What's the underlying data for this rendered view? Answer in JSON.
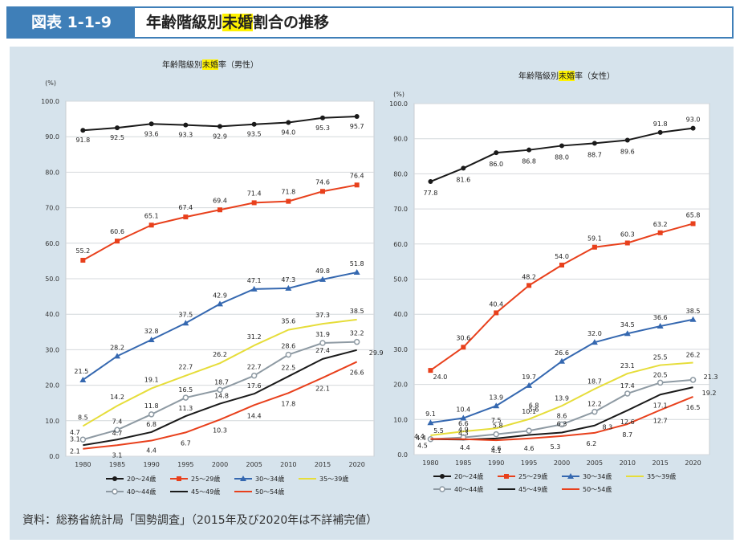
{
  "header": {
    "figure_number": "図表 1-1-9",
    "title_before": "年齢階級別",
    "title_highlight": "未婚",
    "title_after": "割合の推移"
  },
  "source_note": "資料：総務省統計局「国勢調査」（2015年及び2020年は不詳補完値）",
  "colors": {
    "header_accent": "#3f7fb8",
    "panel_bg": "#d6e3ec",
    "highlight": "#fff200"
  },
  "chart_data": [
    {
      "type": "line",
      "title_before": "年齢階級別",
      "title_highlight": "未婚",
      "title_after": "率（男性）",
      "ylabel": "(%)",
      "xlabel": "",
      "ylim": [
        0,
        100
      ],
      "yticks": [
        "0.0",
        "10.0",
        "20.0",
        "30.0",
        "40.0",
        "50.0",
        "60.0",
        "70.0",
        "80.0",
        "90.0",
        "100.0"
      ],
      "categories": [
        "1980",
        "1985",
        "1990",
        "1995",
        "2000",
        "2005",
        "2010",
        "2015",
        "2020"
      ],
      "series": [
        {
          "name": "20～24歳",
          "color": "#1a1a1a",
          "marker": "circle",
          "values": [
            91.8,
            92.5,
            93.6,
            93.3,
            92.9,
            93.5,
            94.0,
            95.3,
            95.7
          ],
          "labels": [
            "91.8",
            "92.5",
            "93.6",
            "93.3",
            "92.9",
            "93.5",
            "94.0",
            "95.3",
            "95.7"
          ]
        },
        {
          "name": "25～29歳",
          "color": "#e8401c",
          "marker": "square",
          "values": [
            55.2,
            60.6,
            65.1,
            67.4,
            69.4,
            71.4,
            71.8,
            74.6,
            76.4
          ],
          "labels": [
            "55.2",
            "60.6",
            "65.1",
            "67.4",
            "69.4",
            "71.4",
            "71.8",
            "74.6",
            "76.4"
          ]
        },
        {
          "name": "30～34歳",
          "color": "#3568b0",
          "marker": "triangle",
          "values": [
            21.5,
            28.2,
            32.8,
            37.5,
            42.9,
            47.1,
            47.3,
            49.8,
            51.8
          ],
          "labels": [
            "21.5",
            "28.2",
            "32.8",
            "37.5",
            "42.9",
            "47.1",
            "47.3",
            "49.8",
            "51.8"
          ]
        },
        {
          "name": "35～39歳",
          "color": "#e6dd3a",
          "marker": "none",
          "values": [
            8.5,
            14.2,
            19.1,
            22.7,
            26.2,
            31.2,
            35.6,
            37.3,
            38.5
          ],
          "labels": [
            "8.5",
            "14.2",
            "19.1",
            "22.7",
            "26.2",
            "31.2",
            "35.6",
            "37.3",
            "38.5"
          ]
        },
        {
          "name": "40～44歳",
          "color": "#8e9aa3",
          "marker": "hollow",
          "values": [
            4.7,
            7.4,
            11.8,
            16.5,
            18.7,
            22.7,
            28.6,
            31.9,
            32.2
          ],
          "labels": [
            "4.7",
            "7.4",
            "11.8",
            "16.5",
            "18.7",
            "22.7",
            "28.6",
            "31.9",
            "32.2"
          ]
        },
        {
          "name": "45～49歳",
          "color": "#1a1a1a",
          "marker": "none",
          "values": [
            3.1,
            4.7,
            6.8,
            11.3,
            14.8,
            17.6,
            22.5,
            27.4,
            29.9
          ],
          "labels": [
            "3.1",
            "4.7",
            "6.8",
            "11.3",
            "14.8",
            "17.6",
            "22.5",
            "27.4",
            "29.9"
          ]
        },
        {
          "name": "50～54歳",
          "color": "#e8401c",
          "marker": "none",
          "values": [
            2.1,
            3.1,
            4.4,
            6.7,
            10.3,
            14.4,
            17.8,
            22.1,
            26.6
          ],
          "labels": [
            "2.1",
            "3.1",
            "4.4",
            "6.7",
            "10.3",
            "14.4",
            "17.8",
            "22.1",
            "26.6"
          ]
        }
      ]
    },
    {
      "type": "line",
      "title_before": "年齢階級別",
      "title_highlight": "未婚",
      "title_after": "率（女性）",
      "ylabel": "(%)",
      "xlabel": "",
      "ylim": [
        0,
        100
      ],
      "yticks": [
        "0.0",
        "10.0",
        "20.0",
        "30.0",
        "40.0",
        "50.0",
        "60.0",
        "70.0",
        "80.0",
        "90.0",
        "100.0"
      ],
      "categories": [
        "1980",
        "1985",
        "1990",
        "1995",
        "2000",
        "2005",
        "2010",
        "2015",
        "2020"
      ],
      "series": [
        {
          "name": "20～24歳",
          "color": "#1a1a1a",
          "marker": "circle",
          "values": [
            77.8,
            81.6,
            86.0,
            86.8,
            88.0,
            88.7,
            89.6,
            91.8,
            93.0
          ],
          "labels": [
            "77.8",
            "81.6",
            "86.0",
            "86.8",
            "88.0",
            "88.7",
            "89.6",
            "91.8",
            "93.0"
          ]
        },
        {
          "name": "25～29歳",
          "color": "#e8401c",
          "marker": "square",
          "values": [
            24.0,
            30.6,
            40.4,
            48.2,
            54.0,
            59.1,
            60.3,
            63.2,
            65.8
          ],
          "labels": [
            "24.0",
            "30.6",
            "40.4",
            "48.2",
            "54.0",
            "59.1",
            "60.3",
            "63.2",
            "65.8"
          ]
        },
        {
          "name": "30～34歳",
          "color": "#3568b0",
          "marker": "triangle",
          "values": [
            9.1,
            10.4,
            13.9,
            19.7,
            26.6,
            32.0,
            34.5,
            36.6,
            38.5
          ],
          "labels": [
            "9.1",
            "10.4",
            "13.9",
            "19.7",
            "26.6",
            "32.0",
            "34.5",
            "36.6",
            "38.5"
          ]
        },
        {
          "name": "35～39歳",
          "color": "#e6dd3a",
          "marker": "none",
          "values": [
            5.5,
            6.6,
            7.5,
            10.1,
            13.9,
            18.7,
            23.1,
            25.5,
            26.2
          ],
          "labels": [
            "5.5",
            "6.6",
            "7.5",
            "10.1",
            "13.9",
            "18.7",
            "23.1",
            "25.5",
            "26.2"
          ]
        },
        {
          "name": "40～44歳",
          "color": "#8e9aa3",
          "marker": "hollow",
          "values": [
            4.4,
            4.9,
            5.8,
            6.8,
            8.6,
            12.2,
            17.4,
            20.5,
            21.3
          ],
          "labels": [
            "4.4",
            "4.9",
            "5.8",
            "6.8",
            "8.6",
            "12.2",
            "17.4",
            "20.5",
            "21.3"
          ]
        },
        {
          "name": "45～49歳",
          "color": "#1a1a1a",
          "marker": "none",
          "values": [
            4.4,
            4.3,
            4.6,
            5.6,
            6.3,
            8.3,
            12.6,
            17.1,
            19.2
          ],
          "labels": [
            "4.4",
            "4.3",
            "4.6",
            "5.6",
            "6.3",
            "8.3",
            "12.6",
            "17.1",
            "19.2"
          ]
        },
        {
          "name": "50～54歳",
          "color": "#e8401c",
          "marker": "none",
          "values": [
            4.5,
            4.4,
            4.1,
            4.6,
            5.3,
            6.2,
            8.7,
            12.7,
            16.5
          ],
          "labels": [
            "4.5",
            "4.4",
            "4.1",
            "4.6",
            "5.3",
            "6.2",
            "8.7",
            "12.7",
            "16.5"
          ]
        }
      ]
    }
  ]
}
